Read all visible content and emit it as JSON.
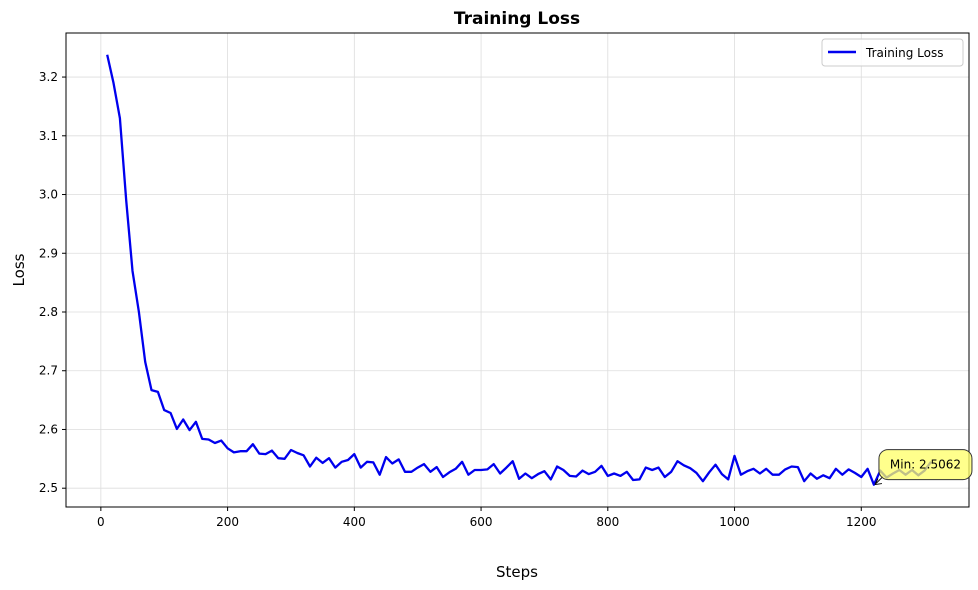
{
  "chart_data": {
    "type": "line",
    "title": "Training Loss",
    "xlabel": "Steps",
    "ylabel": "Loss",
    "xlim": [
      -55,
      1370
    ],
    "ylim": [
      2.468,
      3.275
    ],
    "xticks": [
      0,
      200,
      400,
      600,
      800,
      1000,
      1200
    ],
    "yticks": [
      2.5,
      2.6,
      2.7,
      2.8,
      2.9,
      3.0,
      3.1,
      3.2
    ],
    "ytick_labels": [
      "2.5",
      "2.6",
      "2.7",
      "2.8",
      "2.9",
      "3.0",
      "3.1",
      "3.2"
    ],
    "grid": true,
    "legend_position": "upper right",
    "series": [
      {
        "name": "Training Loss",
        "color": "#0000ee",
        "x": [
          10,
          20,
          30,
          40,
          50,
          60,
          70,
          80,
          90,
          100,
          110,
          120,
          130,
          140,
          150,
          160,
          170,
          180,
          190,
          200,
          210,
          220,
          230,
          240,
          250,
          260,
          270,
          280,
          290,
          300,
          310,
          320,
          330,
          340,
          350,
          360,
          370,
          380,
          390,
          400,
          410,
          420,
          430,
          440,
          450,
          460,
          470,
          480,
          490,
          500,
          510,
          520,
          530,
          540,
          550,
          560,
          570,
          580,
          590,
          600,
          610,
          620,
          630,
          640,
          650,
          660,
          670,
          680,
          690,
          700,
          710,
          720,
          730,
          740,
          750,
          760,
          770,
          780,
          790,
          800,
          810,
          820,
          830,
          840,
          850,
          860,
          870,
          880,
          890,
          900,
          910,
          920,
          930,
          940,
          950,
          960,
          970,
          980,
          990,
          1000,
          1010,
          1020,
          1030,
          1040,
          1050,
          1060,
          1070,
          1080,
          1090,
          1100,
          1110,
          1120,
          1130,
          1140,
          1150,
          1160,
          1170,
          1180,
          1190,
          1200,
          1210,
          1220,
          1230,
          1240,
          1250,
          1260,
          1270,
          1280,
          1290,
          1300,
          1310
        ],
        "y": [
          3.238,
          3.19,
          3.13,
          2.99,
          2.87,
          2.8,
          2.715,
          2.667,
          2.664,
          2.633,
          2.628,
          2.601,
          2.617,
          2.599,
          2.613,
          2.584,
          2.583,
          2.577,
          2.581,
          2.568,
          2.561,
          2.563,
          2.563,
          2.575,
          2.559,
          2.558,
          2.564,
          2.551,
          2.55,
          2.565,
          2.56,
          2.556,
          2.537,
          2.552,
          2.543,
          2.551,
          2.535,
          2.545,
          2.548,
          2.558,
          2.535,
          2.545,
          2.544,
          2.523,
          2.553,
          2.542,
          2.549,
          2.528,
          2.528,
          2.535,
          2.541,
          2.528,
          2.536,
          2.519,
          2.527,
          2.533,
          2.545,
          2.523,
          2.531,
          2.531,
          2.532,
          2.541,
          2.525,
          2.535,
          2.546,
          2.516,
          2.525,
          2.517,
          2.524,
          2.529,
          2.515,
          2.537,
          2.531,
          2.521,
          2.52,
          2.53,
          2.524,
          2.528,
          2.538,
          2.521,
          2.525,
          2.521,
          2.528,
          2.514,
          2.515,
          2.535,
          2.531,
          2.535,
          2.519,
          2.528,
          2.546,
          2.539,
          2.534,
          2.526,
          2.512,
          2.527,
          2.54,
          2.524,
          2.515,
          2.555,
          2.523,
          2.529,
          2.533,
          2.525,
          2.533,
          2.523,
          2.523,
          2.532,
          2.537,
          2.536,
          2.512,
          2.525,
          2.516,
          2.522,
          2.517,
          2.533,
          2.523,
          2.532,
          2.526,
          2.519,
          2.533,
          2.506,
          2.53,
          2.518,
          2.525,
          2.531,
          2.523,
          2.531,
          2.522,
          2.53,
          2.545
        ]
      }
    ],
    "annotation": {
      "text": "Min: 2.5062",
      "x": 1220,
      "y": 2.5062
    }
  }
}
